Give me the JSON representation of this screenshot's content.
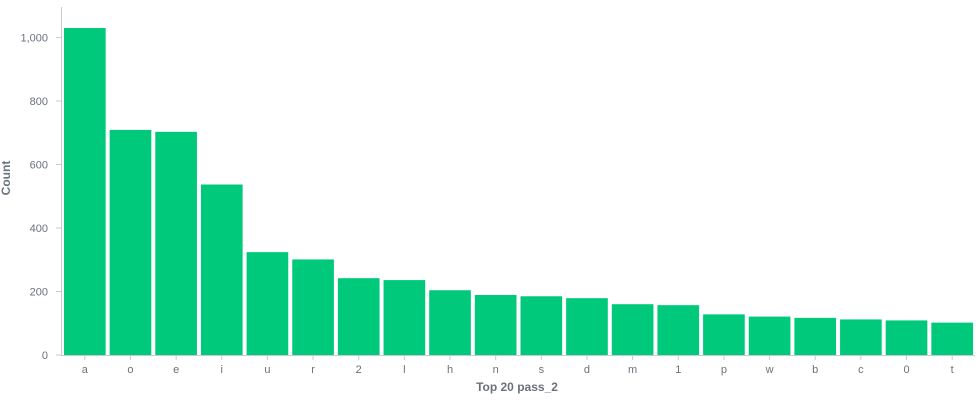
{
  "chart_data": {
    "type": "bar",
    "categories": [
      "a",
      "o",
      "e",
      "i",
      "u",
      "r",
      "2",
      "l",
      "h",
      "n",
      "s",
      "d",
      "m",
      "1",
      "p",
      "w",
      "b",
      "c",
      "0",
      "t"
    ],
    "values": [
      1030,
      709,
      703,
      537,
      324,
      301,
      242,
      236,
      204,
      189,
      185,
      179,
      160,
      157,
      128,
      121,
      117,
      112,
      109,
      102
    ],
    "xlabel": "Top 20 pass_2",
    "ylabel": "Count",
    "ylim": [
      0,
      1100
    ],
    "yticks": [
      0,
      200,
      400,
      600,
      800,
      1000
    ],
    "ytick_labels": [
      "0",
      "200",
      "400",
      "600",
      "800",
      "1,000"
    ],
    "grid": false,
    "bar_color": "#00c97b",
    "axis_color": "#c5cad3",
    "text_color": "#6a717d"
  }
}
